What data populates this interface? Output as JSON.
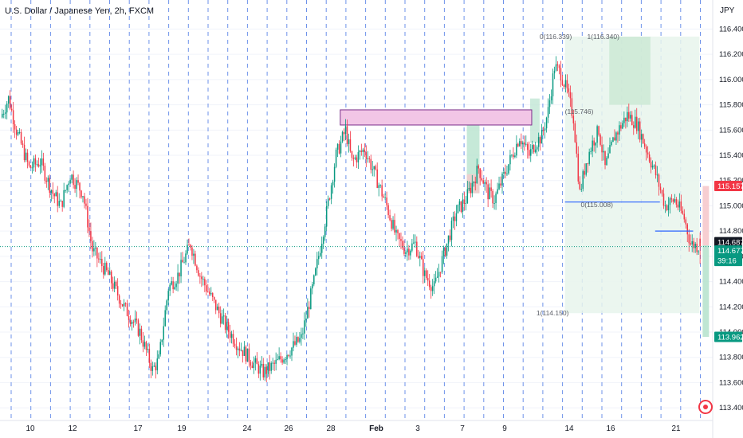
{
  "header": {
    "title": "U.S. Dollar / Japanese Yen, 2h, FXCM",
    "currency": "JPY"
  },
  "chart_data": {
    "type": "candlestick",
    "x_tick_labels": [
      "10",
      "12",
      "17",
      "19",
      "24",
      "26",
      "28",
      "Feb",
      "3",
      "7",
      "9",
      "14",
      "16",
      "21"
    ],
    "y_ticks": [
      113.4,
      113.6,
      113.8,
      114.0,
      114.2,
      114.4,
      114.6,
      114.8,
      115.0,
      115.2,
      115.4,
      115.6,
      115.8,
      116.0,
      116.2,
      116.4
    ],
    "y_tick_labels": [
      "113.400",
      "113.600",
      "113.800",
      "114.000",
      "114.200",
      "114.400",
      "114.600",
      "114.800",
      "115.000",
      "115.200",
      "115.400",
      "115.600",
      "115.800",
      "116.000",
      "116.200",
      "116.400"
    ],
    "ylim": [
      113.3,
      116.63
    ],
    "colors": {
      "up": "#089981",
      "down": "#f23645"
    },
    "path": [
      [
        0,
        115.7
      ],
      [
        5,
        115.85
      ],
      [
        10,
        115.6
      ],
      [
        18,
        115.3
      ],
      [
        25,
        115.35
      ],
      [
        33,
        115.1
      ],
      [
        38,
        115.0
      ],
      [
        44,
        115.25
      ],
      [
        52,
        115.1
      ],
      [
        58,
        114.65
      ],
      [
        68,
        114.45
      ],
      [
        78,
        114.2
      ],
      [
        88,
        114.0
      ],
      [
        96,
        113.7
      ],
      [
        100,
        113.78
      ],
      [
        106,
        114.35
      ],
      [
        112,
        114.45
      ],
      [
        120,
        114.7
      ],
      [
        126,
        114.45
      ],
      [
        134,
        114.25
      ],
      [
        142,
        114.05
      ],
      [
        150,
        113.9
      ],
      [
        160,
        113.75
      ],
      [
        166,
        113.68
      ],
      [
        174,
        113.75
      ],
      [
        182,
        113.85
      ],
      [
        190,
        113.95
      ],
      [
        198,
        114.4
      ],
      [
        206,
        114.95
      ],
      [
        212,
        115.4
      ],
      [
        218,
        115.6
      ],
      [
        222,
        115.35
      ],
      [
        230,
        115.45
      ],
      [
        238,
        115.2
      ],
      [
        244,
        115.0
      ],
      [
        250,
        114.75
      ],
      [
        256,
        114.65
      ],
      [
        262,
        114.7
      ],
      [
        268,
        114.45
      ],
      [
        274,
        114.35
      ],
      [
        282,
        114.7
      ],
      [
        288,
        114.95
      ],
      [
        294,
        115.05
      ],
      [
        302,
        115.3
      ],
      [
        308,
        115.1
      ],
      [
        312,
        115.05
      ],
      [
        320,
        115.3
      ],
      [
        328,
        115.55
      ],
      [
        334,
        115.4
      ],
      [
        338,
        115.5
      ],
      [
        342,
        115.55
      ],
      [
        346,
        115.75
      ],
      [
        350,
        116.1
      ],
      [
        354,
        116.05
      ],
      [
        358,
        115.9
      ],
      [
        362,
        115.7
      ],
      [
        366,
        115.1
      ],
      [
        370,
        115.35
      ],
      [
        374,
        115.5
      ],
      [
        378,
        115.6
      ],
      [
        382,
        115.3
      ],
      [
        388,
        115.55
      ],
      [
        396,
        115.72
      ],
      [
        402,
        115.65
      ],
      [
        408,
        115.45
      ],
      [
        414,
        115.25
      ],
      [
        420,
        115.0
      ],
      [
        426,
        115.05
      ],
      [
        432,
        114.9
      ],
      [
        436,
        114.7
      ],
      [
        441,
        114.68
      ]
    ],
    "last_bar": {
      "open": 114.74,
      "high": 114.79,
      "low": 114.54,
      "close": 114.68
    },
    "price_tags": [
      {
        "label": "115.157",
        "value": 115.157,
        "color": "#f23645"
      },
      {
        "label": "114.687",
        "value": 114.687,
        "color": "#131722"
      },
      {
        "label": "114.677",
        "value": 114.677,
        "color": "#089981",
        "countdown": "39:16"
      },
      {
        "label": "113.962",
        "value": 113.962,
        "color": "#089981"
      }
    ],
    "annotations": [
      {
        "text": "0(116.339)",
        "x": 340,
        "y": 116.339
      },
      {
        "text": "1(116.340)",
        "x": 370,
        "y": 116.34
      },
      {
        "text": "(115.746)",
        "x": 356,
        "y": 115.746
      },
      {
        "text": "0(115.008)",
        "x": 366,
        "y": 115.008
      },
      {
        "text": "1(114.150)",
        "x": 338,
        "y": 114.15
      }
    ],
    "zones": [
      {
        "kind": "supply",
        "x1": 214,
        "x2": 335,
        "y_top": 115.76,
        "y_bottom": 115.64
      }
    ],
    "levels": [
      {
        "x1": 356,
        "x2": 416,
        "y": 115.03
      },
      {
        "x1": 413,
        "x2": 437,
        "y": 114.8
      }
    ]
  }
}
